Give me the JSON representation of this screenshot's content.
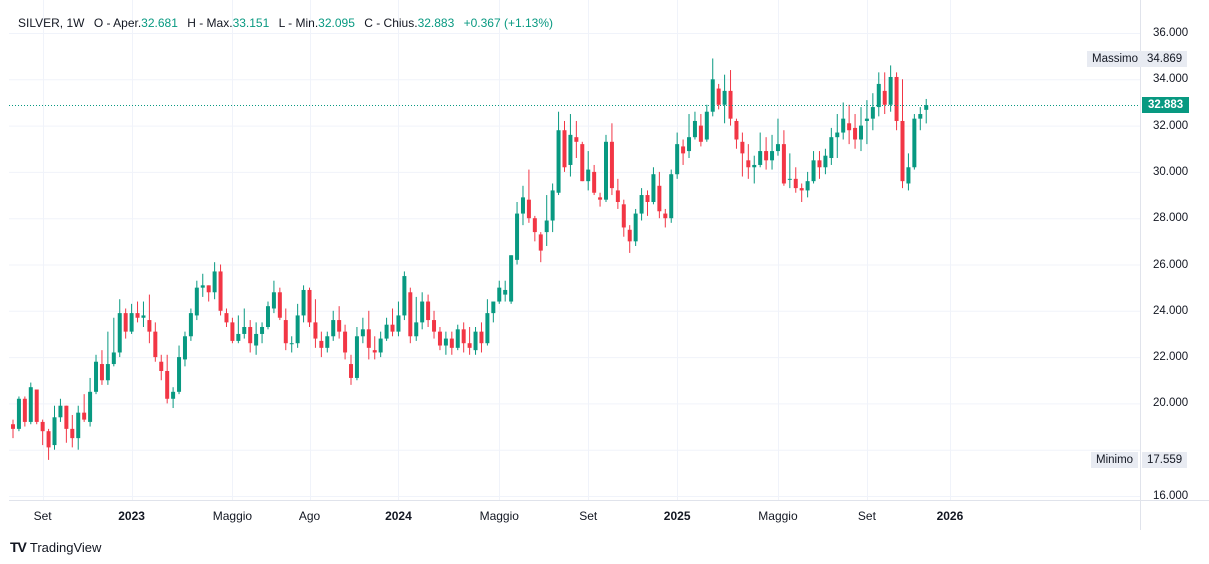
{
  "legend": {
    "symbol": "SILVER, 1W",
    "open_label": "O - Aper.",
    "open": "32.681",
    "high_label": "H - Max.",
    "high": "33.151",
    "low_label": "L - Min.",
    "low": "32.095",
    "close_label": "C - Chius.",
    "close": "32.883",
    "change": "+0.367 (+1.13%)"
  },
  "flags": {
    "max_label": "Massimo",
    "max_value": "34.869",
    "min_label": "Minimo",
    "min_value": "17.559",
    "last_value": "32.883"
  },
  "brand": {
    "logo": "TV",
    "name": "TradingView"
  },
  "colors": {
    "up": "#089981",
    "down": "#f23645",
    "grid": "#f0f3fa",
    "last_line": "#089981"
  },
  "chart_data": {
    "type": "candlestick",
    "y_axis": {
      "min": 16000,
      "max": 36000,
      "ticks": [
        "16.000",
        "18.000",
        "20.000",
        "22.000",
        "24.000",
        "26.000",
        "28.000",
        "30.000",
        "32.000",
        "34.000",
        "36.000"
      ],
      "tick_values": [
        16000,
        18000,
        20000,
        22000,
        24000,
        26000,
        28000,
        30000,
        32000,
        34000,
        36000
      ]
    },
    "x_axis": {
      "labels": [
        "Set",
        "2023",
        "Maggio",
        "Ago",
        "2024",
        "Maggio",
        "Set",
        "2025",
        "Maggio",
        "Set",
        "2026"
      ],
      "label_weeks": [
        5,
        20,
        37,
        50,
        65,
        82,
        97,
        112,
        129,
        144,
        158
      ],
      "bold": [
        "2023",
        "2024",
        "2025",
        "2026"
      ]
    },
    "grid": true,
    "last_price": 32883,
    "candles": [
      [
        19100,
        19300,
        18500,
        18900
      ],
      [
        18900,
        20300,
        18800,
        20200
      ],
      [
        20200,
        20300,
        19000,
        19200
      ],
      [
        19200,
        20900,
        19100,
        20700
      ],
      [
        20600,
        20500,
        19100,
        19200
      ],
      [
        19200,
        19300,
        18200,
        18800
      ],
      [
        18800,
        18900,
        17560,
        18100
      ],
      [
        18200,
        19900,
        18000,
        19400
      ],
      [
        19400,
        20200,
        19200,
        19900
      ],
      [
        19900,
        19900,
        18300,
        18900
      ],
      [
        18900,
        19500,
        18100,
        18500
      ],
      [
        18500,
        19900,
        18000,
        19600
      ],
      [
        19600,
        20400,
        19200,
        19300
      ],
      [
        19200,
        21100,
        19000,
        20500
      ],
      [
        20500,
        22100,
        20400,
        21800
      ],
      [
        21700,
        22300,
        20800,
        21000
      ],
      [
        21000,
        23100,
        20800,
        21700
      ],
      [
        21700,
        23700,
        21600,
        22200
      ],
      [
        22200,
        24500,
        22000,
        23900
      ],
      [
        23900,
        24100,
        22800,
        23100
      ],
      [
        23100,
        24300,
        23000,
        23900
      ],
      [
        23900,
        24400,
        23500,
        23700
      ],
      [
        23700,
        24400,
        23300,
        23800
      ],
      [
        23600,
        24700,
        22600,
        23100
      ],
      [
        23100,
        23500,
        21800,
        22000
      ],
      [
        21800,
        22100,
        21000,
        21400
      ],
      [
        21400,
        22100,
        20000,
        20200
      ],
      [
        20200,
        20700,
        19800,
        20500
      ],
      [
        20500,
        22500,
        20400,
        22000
      ],
      [
        21900,
        23100,
        21600,
        22900
      ],
      [
        22900,
        24100,
        22700,
        23900
      ],
      [
        23800,
        25300,
        23600,
        25000
      ],
      [
        25000,
        25600,
        24600,
        25100
      ],
      [
        25100,
        25100,
        24400,
        24800
      ],
      [
        24800,
        26100,
        24500,
        25700
      ],
      [
        25700,
        26000,
        23800,
        24000
      ],
      [
        23900,
        24100,
        23300,
        23500
      ],
      [
        23500,
        23700,
        22600,
        22700
      ],
      [
        22700,
        23800,
        22600,
        23000
      ],
      [
        23000,
        24100,
        22800,
        23300
      ],
      [
        23300,
        23600,
        22200,
        22600
      ],
      [
        22500,
        23500,
        22100,
        23000
      ],
      [
        23000,
        23500,
        22600,
        23300
      ],
      [
        23300,
        24400,
        23200,
        24200
      ],
      [
        24100,
        25300,
        23900,
        24800
      ],
      [
        24800,
        25000,
        23600,
        23700
      ],
      [
        23600,
        24100,
        22300,
        22600
      ],
      [
        22600,
        22900,
        22200,
        22600
      ],
      [
        22600,
        24300,
        22400,
        23800
      ],
      [
        23800,
        25100,
        23500,
        24900
      ],
      [
        24900,
        25000,
        23300,
        23500
      ],
      [
        23500,
        24500,
        22400,
        22800
      ],
      [
        22700,
        23100,
        22000,
        22400
      ],
      [
        22400,
        23100,
        22200,
        22900
      ],
      [
        22900,
        24000,
        22700,
        23600
      ],
      [
        23600,
        24200,
        22800,
        23100
      ],
      [
        23100,
        23400,
        21900,
        22200
      ],
      [
        21700,
        22100,
        20800,
        21100
      ],
      [
        21100,
        23300,
        21000,
        22900
      ],
      [
        22900,
        23700,
        22600,
        23200
      ],
      [
        23200,
        24000,
        21900,
        22400
      ],
      [
        22300,
        22900,
        21900,
        22200
      ],
      [
        22200,
        23100,
        22000,
        22800
      ],
      [
        22800,
        23700,
        22700,
        23400
      ],
      [
        23400,
        24100,
        22900,
        23100
      ],
      [
        23100,
        24400,
        22900,
        23800
      ],
      [
        23800,
        25700,
        23600,
        25500
      ],
      [
        24800,
        25000,
        22600,
        22900
      ],
      [
        22900,
        24600,
        22700,
        23500
      ],
      [
        23500,
        24800,
        23200,
        24400
      ],
      [
        24400,
        24700,
        23300,
        23600
      ],
      [
        23600,
        24000,
        22800,
        23100
      ],
      [
        23100,
        23300,
        22300,
        22500
      ],
      [
        22500,
        23100,
        22100,
        22800
      ],
      [
        22800,
        23100,
        22100,
        22400
      ],
      [
        22400,
        23400,
        22300,
        23200
      ],
      [
        23200,
        23500,
        22200,
        22600
      ],
      [
        22600,
        23300,
        22100,
        22400
      ],
      [
        22300,
        23300,
        22100,
        23100
      ],
      [
        23100,
        23500,
        22200,
        22600
      ],
      [
        22600,
        24500,
        22500,
        23900
      ],
      [
        23900,
        24400,
        23500,
        24400
      ],
      [
        24400,
        25300,
        24300,
        25000
      ],
      [
        24700,
        25300,
        24400,
        24900
      ],
      [
        24400,
        26400,
        24300,
        26400
      ],
      [
        26200,
        28700,
        26000,
        28200
      ],
      [
        28200,
        29400,
        27700,
        28900
      ],
      [
        28800,
        30100,
        27800,
        28000
      ],
      [
        28000,
        28100,
        27000,
        27400
      ],
      [
        27300,
        27400,
        26100,
        26600
      ],
      [
        27400,
        29000,
        26800,
        27900
      ],
      [
        27900,
        29500,
        27400,
        29200
      ],
      [
        29100,
        32600,
        29000,
        31800
      ],
      [
        31800,
        32200,
        30000,
        30200
      ],
      [
        30300,
        32500,
        29800,
        31600
      ],
      [
        31500,
        32200,
        30600,
        31300
      ],
      [
        31200,
        31300,
        29600,
        29600
      ],
      [
        29600,
        30900,
        29200,
        30100
      ],
      [
        30000,
        30300,
        29000,
        29100
      ],
      [
        28900,
        29100,
        28500,
        28800
      ],
      [
        28800,
        31600,
        28700,
        31300
      ],
      [
        31300,
        32100,
        29000,
        29300
      ],
      [
        29200,
        29700,
        28400,
        28700
      ],
      [
        28600,
        28800,
        27200,
        27600
      ],
      [
        27500,
        27700,
        26500,
        27000
      ],
      [
        27000,
        28400,
        26800,
        28200
      ],
      [
        28200,
        29300,
        27900,
        29000
      ],
      [
        29000,
        29200,
        28100,
        28700
      ],
      [
        28700,
        30200,
        28600,
        29900
      ],
      [
        29400,
        30000,
        28000,
        28300
      ],
      [
        28200,
        28400,
        27600,
        28000
      ],
      [
        28000,
        30100,
        27800,
        29900
      ],
      [
        29900,
        31700,
        29700,
        31200
      ],
      [
        31100,
        31400,
        30300,
        30800
      ],
      [
        30900,
        32500,
        30600,
        31500
      ],
      [
        31500,
        32600,
        31400,
        32200
      ],
      [
        32000,
        32500,
        31100,
        31300
      ],
      [
        31400,
        32900,
        31300,
        32600
      ],
      [
        32600,
        34900,
        32400,
        34000
      ],
      [
        33600,
        33800,
        32700,
        32900
      ],
      [
        32900,
        34200,
        32100,
        33500
      ],
      [
        33500,
        34400,
        32000,
        32300
      ],
      [
        32200,
        32300,
        31000,
        31400
      ],
      [
        31300,
        31700,
        29800,
        30800
      ],
      [
        30500,
        31200,
        29700,
        30200
      ],
      [
        30200,
        30700,
        29500,
        30300
      ],
      [
        30300,
        31700,
        30200,
        30900
      ],
      [
        30900,
        31500,
        30100,
        30500
      ],
      [
        30500,
        31600,
        30100,
        30900
      ],
      [
        30900,
        32300,
        30700,
        31200
      ],
      [
        31200,
        31800,
        29400,
        29500
      ],
      [
        29700,
        30800,
        29300,
        29700
      ],
      [
        29700,
        30200,
        29100,
        29300
      ],
      [
        29300,
        29500,
        28700,
        29200
      ],
      [
        29200,
        30000,
        28900,
        29600
      ],
      [
        29600,
        30900,
        29500,
        30500
      ],
      [
        30500,
        30900,
        29700,
        30200
      ],
      [
        30200,
        31000,
        29900,
        30700
      ],
      [
        30600,
        31900,
        30300,
        31500
      ],
      [
        31500,
        32500,
        30600,
        31700
      ],
      [
        31700,
        33000,
        31400,
        32300
      ],
      [
        32100,
        32900,
        31200,
        31800
      ],
      [
        31900,
        32500,
        31000,
        31400
      ],
      [
        31400,
        32800,
        30900,
        32000
      ],
      [
        32200,
        33100,
        31200,
        32300
      ],
      [
        32300,
        33400,
        31800,
        32800
      ],
      [
        32800,
        34300,
        32400,
        33800
      ],
      [
        33500,
        34300,
        32500,
        32900
      ],
      [
        32900,
        34600,
        32600,
        34100
      ],
      [
        34100,
        34300,
        31800,
        32200
      ],
      [
        32200,
        34000,
        29300,
        29600
      ],
      [
        29500,
        30800,
        29200,
        30200
      ],
      [
        30200,
        32500,
        30100,
        32300
      ],
      [
        32300,
        32800,
        31800,
        32500
      ],
      [
        32681,
        33151,
        32095,
        32883
      ]
    ]
  }
}
